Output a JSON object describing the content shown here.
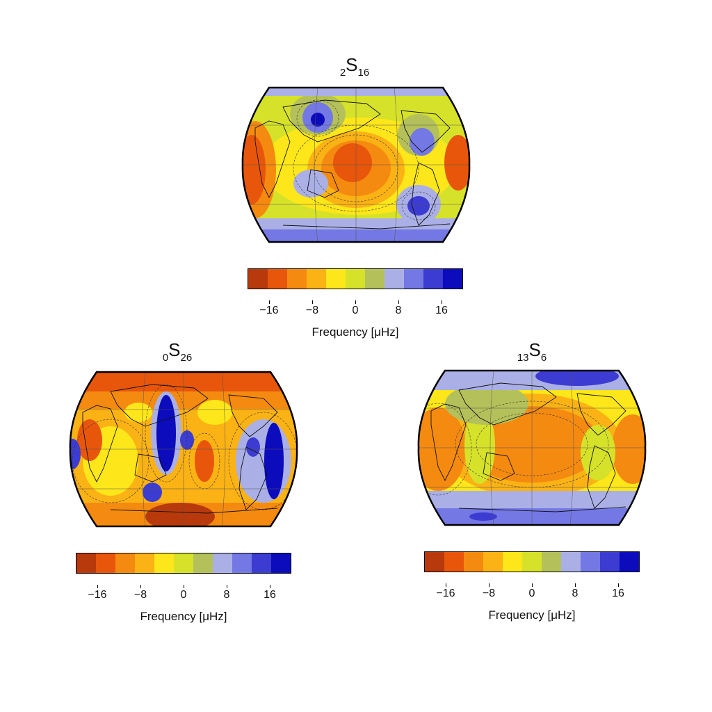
{
  "colors": {
    "stops": [
      "#b83a0c",
      "#e8560c",
      "#f58a10",
      "#fbb214",
      "#fde619",
      "#d6e22a",
      "#b4c15a",
      "#aab0e6",
      "#7478e4",
      "#3c3cd2",
      "#0c0cbc"
    ],
    "ocean_outline": "#000000",
    "coast": "#222222"
  },
  "colorbar": {
    "ticks": [
      "−16",
      "−8",
      "0",
      "8",
      "16"
    ],
    "label": "Frequency [μHz]"
  },
  "panels": [
    {
      "id": "top",
      "title": {
        "pre": "2",
        "letter": "S",
        "post": "16"
      }
    },
    {
      "id": "left",
      "title": {
        "pre": "0",
        "letter": "S",
        "post": "26"
      }
    },
    {
      "id": "right",
      "title": {
        "pre": "13",
        "letter": "S",
        "post": "6"
      }
    }
  ]
}
